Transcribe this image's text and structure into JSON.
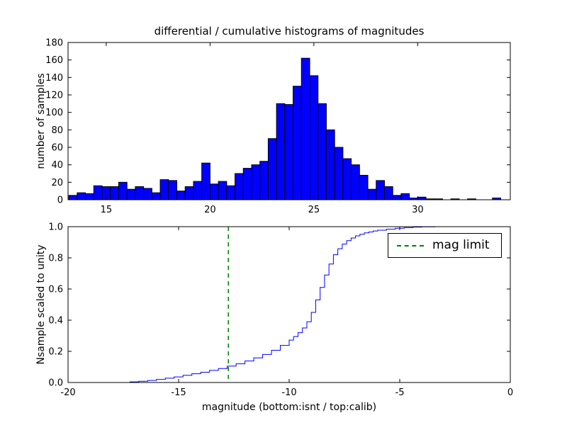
{
  "figure": {
    "background": "#ffffff"
  },
  "chart_data": [
    {
      "type": "bar",
      "role": "top-differential-histogram",
      "title": "differential / cumulative histograms of magnitudes",
      "xlabel": "",
      "ylabel": "number of samples",
      "xlim": [
        13.16,
        34.46
      ],
      "ylim": [
        0,
        180
      ],
      "xticks": [
        15,
        20,
        25,
        30
      ],
      "xtick_labels": [
        "15",
        "20",
        "25",
        "30"
      ],
      "yticks": [
        0,
        20,
        40,
        60,
        80,
        100,
        120,
        140,
        160,
        180
      ],
      "ytick_labels": [
        "0",
        "20",
        "40",
        "60",
        "80",
        "100",
        "120",
        "140",
        "160",
        "180"
      ],
      "grid": false,
      "bar_color": "#0000ff",
      "bar_edge_color": "#000000",
      "bin_start": 13.2,
      "bin_width": 0.4,
      "counts": [
        5,
        8,
        7,
        16,
        15,
        15,
        20,
        12,
        15,
        13,
        8,
        23,
        22,
        10,
        15,
        21,
        42,
        18,
        21,
        16,
        30,
        36,
        40,
        44,
        70,
        110,
        109,
        130,
        162,
        142,
        110,
        80,
        60,
        47,
        40,
        28,
        12,
        22,
        15,
        5,
        7,
        2,
        3,
        1,
        1,
        0,
        1,
        0,
        1,
        0,
        0,
        2
      ]
    },
    {
      "type": "line",
      "role": "bottom-cumulative-histogram",
      "title": "",
      "xlabel": "magnitude (bottom:isnt / top:calib)",
      "ylabel": "Nsample scaled to unity",
      "xlim": [
        -20,
        0
      ],
      "ylim": [
        0,
        1.0
      ],
      "xticks": [
        -20,
        -15,
        -10,
        -5,
        0
      ],
      "xtick_labels": [
        "-20",
        "-15",
        "-10",
        "-5",
        "0"
      ],
      "yticks": [
        0,
        0.2,
        0.4,
        0.6,
        0.8,
        1.0
      ],
      "ytick_labels": [
        "0.0",
        "0.2",
        "0.4",
        "0.6",
        "0.8",
        "1.0"
      ],
      "grid": false,
      "line_color": "#0000ff",
      "draw_style": "steps",
      "step": [
        [
          -20,
          0
        ],
        [
          -17.6,
          0
        ],
        [
          -17.2,
          0.004
        ],
        [
          -16.8,
          0.008
        ],
        [
          -16.4,
          0.013
        ],
        [
          -16,
          0.02
        ],
        [
          -15.6,
          0.028
        ],
        [
          -15.2,
          0.036
        ],
        [
          -14.8,
          0.046
        ],
        [
          -14.4,
          0.056
        ],
        [
          -14,
          0.066
        ],
        [
          -13.6,
          0.078
        ],
        [
          -13.2,
          0.09
        ],
        [
          -12.8,
          0.105
        ],
        [
          -12.4,
          0.12
        ],
        [
          -12,
          0.138
        ],
        [
          -11.6,
          0.158
        ],
        [
          -11.2,
          0.18
        ],
        [
          -10.8,
          0.207
        ],
        [
          -10.4,
          0.238
        ],
        [
          -10,
          0.272
        ],
        [
          -9.8,
          0.295
        ],
        [
          -9.6,
          0.32
        ],
        [
          -9.4,
          0.35
        ],
        [
          -9.2,
          0.39
        ],
        [
          -9,
          0.45
        ],
        [
          -8.8,
          0.53
        ],
        [
          -8.6,
          0.61
        ],
        [
          -8.4,
          0.69
        ],
        [
          -8.2,
          0.76
        ],
        [
          -8,
          0.82
        ],
        [
          -7.8,
          0.858
        ],
        [
          -7.6,
          0.888
        ],
        [
          -7.4,
          0.91
        ],
        [
          -7.2,
          0.927
        ],
        [
          -7,
          0.941
        ],
        [
          -6.8,
          0.951
        ],
        [
          -6.6,
          0.96
        ],
        [
          -6.4,
          0.966
        ],
        [
          -6.2,
          0.972
        ],
        [
          -6,
          0.977
        ],
        [
          -5.6,
          0.984
        ],
        [
          -5.2,
          0.99
        ],
        [
          -4.8,
          0.994
        ],
        [
          -4.4,
          0.997
        ],
        [
          -4,
          0.999
        ],
        [
          -3.4,
          1.0
        ],
        [
          0,
          1.0
        ]
      ],
      "vline": {
        "x": -12.75,
        "color": "#008000",
        "style": "dashed",
        "label": "mag limit"
      },
      "legend": {
        "label": "mag limit",
        "position": "upper right"
      }
    }
  ]
}
